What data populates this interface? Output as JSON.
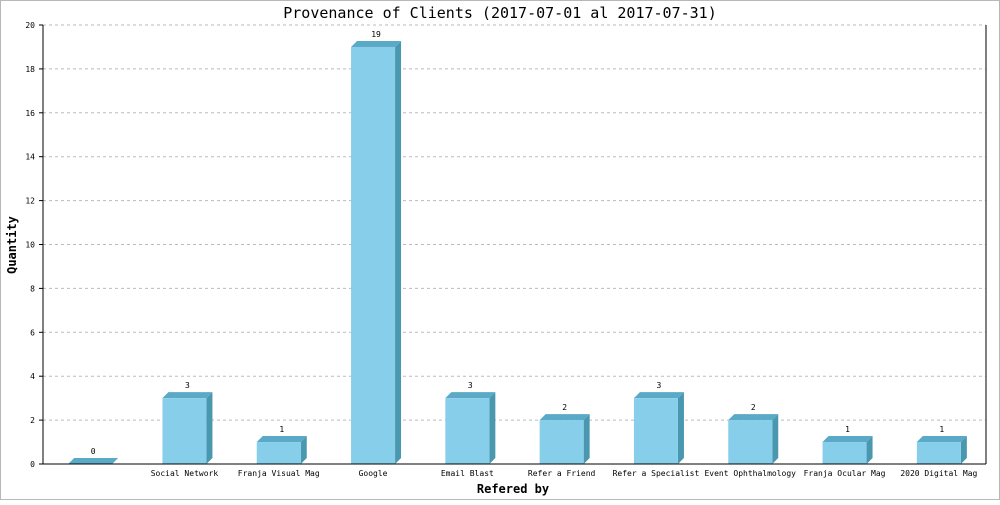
{
  "chart_data": {
    "type": "bar",
    "title": "Provenance of Clients (2017-07-01 al 2017-07-31)",
    "xlabel": "Refered by",
    "ylabel": "Quantity",
    "ylim": [
      0,
      20
    ],
    "yticks": [
      0,
      2,
      4,
      6,
      8,
      10,
      12,
      14,
      16,
      18,
      20
    ],
    "grid": true,
    "categories": [
      "",
      "Social Network",
      "Franja Visual Mag",
      "Google",
      "Email Blast",
      "Refer a Friend",
      "Refer a Specialist",
      "Event Ophthalmology",
      "Franja Ocular Mag",
      "2020 Digital Mag"
    ],
    "values": [
      0,
      3,
      1,
      19,
      3,
      2,
      3,
      2,
      1,
      1
    ],
    "colors": {
      "bar_front": "#87ceeb",
      "bar_side": "#4a98b0",
      "bar_top": "#5aa9c6",
      "axis": "#000000",
      "grid": "#bbbbbb"
    }
  }
}
